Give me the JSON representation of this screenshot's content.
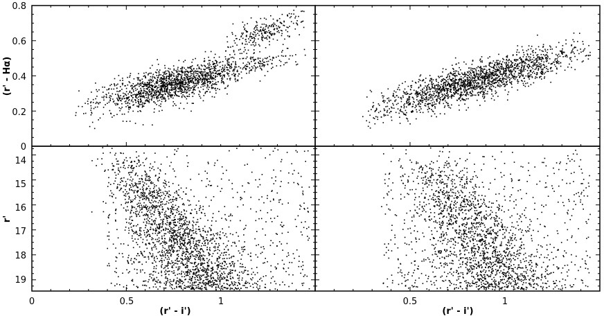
{
  "chart_data": {
    "type": "scatter",
    "layout": "2x2 grid, shared x axes per column, shared y axes per row",
    "point_color": "#000000",
    "x_range": [
      0,
      1.5
    ],
    "xlabel": "(r' - i')",
    "panels": {
      "top_left": {
        "ylabel": "(r' - Hα)",
        "ylim": [
          0,
          0.8
        ],
        "x_ticks": [],
        "y_ticks": [
          "0",
          "0.2",
          "0.4",
          "0.6",
          "0.8"
        ],
        "clouds": [
          {
            "x_range": [
              0.22,
              1.1
            ],
            "center": [
              0.75,
              0.35
            ],
            "slope": 0.25,
            "spread": 0.05,
            "n": 1500
          },
          {
            "x_range": [
              1.0,
              1.47
            ],
            "center": [
              1.22,
              0.64
            ],
            "slope": 0.38,
            "spread": 0.04,
            "n": 260
          },
          {
            "x_range": [
              0.95,
              1.47
            ],
            "center": [
              1.2,
              0.47
            ],
            "slope": 0.22,
            "spread": 0.03,
            "n": 160
          }
        ]
      },
      "top_right": {
        "ylim": [
          0,
          0.8
        ],
        "x_ticks": [],
        "y_ticks": [],
        "clouds": [
          {
            "x_range": [
              0.25,
              1.45
            ],
            "center": [
              0.85,
              0.37
            ],
            "slope": 0.3,
            "spread": 0.05,
            "n": 1900
          }
        ]
      },
      "bottom_left": {
        "ylabel": "r'",
        "ylim": [
          19.45,
          13.65
        ],
        "x_ticks": [
          "0",
          "0.5",
          "1"
        ],
        "y_ticks": [
          "14",
          "15",
          "16",
          "17",
          "18",
          "19"
        ],
        "clouds": [
          {
            "type": "band",
            "x_at_top": 0.45,
            "x_at_bottom": 0.95,
            "width": 0.1,
            "n": 1700
          },
          {
            "type": "scatter_field",
            "x_range": [
              0.4,
              1.47
            ],
            "y_range": [
              13.7,
              19.4
            ],
            "n": 700
          }
        ]
      },
      "bottom_right": {
        "ylim": [
          19.45,
          13.65
        ],
        "x_ticks": [
          "0.5",
          "1"
        ],
        "y_ticks": [],
        "clouds": [
          {
            "type": "band",
            "x_at_top": 0.6,
            "x_at_bottom": 1.0,
            "width": 0.11,
            "n": 1500
          },
          {
            "type": "scatter_field",
            "x_range": [
              0.35,
              1.45
            ],
            "y_range": [
              13.7,
              19.4
            ],
            "n": 650
          }
        ]
      }
    }
  }
}
